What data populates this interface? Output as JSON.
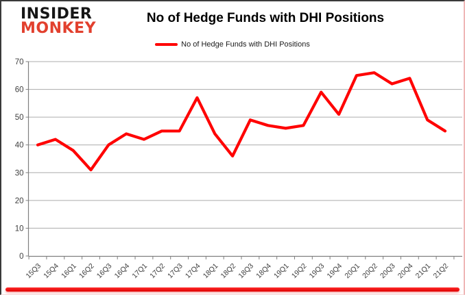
{
  "header": {
    "logo": {
      "line1": "INSIDER",
      "line2": "MONKEY"
    },
    "title": "No of Hedge Funds with DHI Positions"
  },
  "legend": {
    "label": "No of Hedge Funds with DHI Positions"
  },
  "colors": {
    "line": "#FF0000",
    "logo_black": "#161616",
    "logo_red": "#E2402E",
    "grid": "#ACACAC",
    "axis": "#7F7F7F",
    "tick_label": "#3F3F3F",
    "bottom_bar": "#FF0000"
  },
  "chart_data": {
    "type": "line",
    "title": "No of Hedge Funds with DHI Positions",
    "categories": [
      "15Q3",
      "15Q4",
      "16Q1",
      "16Q2",
      "16Q3",
      "16Q4",
      "17Q1",
      "17Q2",
      "17Q3",
      "17Q4",
      "18Q1",
      "18Q2",
      "18Q3",
      "18Q4",
      "19Q1",
      "19Q2",
      "19Q3",
      "19Q4",
      "20Q1",
      "20Q2",
      "20Q3",
      "20Q4",
      "21Q1",
      "21Q2"
    ],
    "series": [
      {
        "name": "No of Hedge Funds with DHI Positions",
        "values": [
          40,
          42,
          38,
          31,
          40,
          44,
          42,
          45,
          45,
          57,
          44,
          36,
          49,
          47,
          46,
          47,
          59,
          51,
          65,
          66,
          62,
          64,
          49,
          45
        ]
      }
    ],
    "ylim": [
      0,
      70
    ],
    "yticks": [
      0,
      10,
      20,
      30,
      40,
      50,
      60,
      70
    ],
    "grid": true,
    "legend_position": "top"
  }
}
